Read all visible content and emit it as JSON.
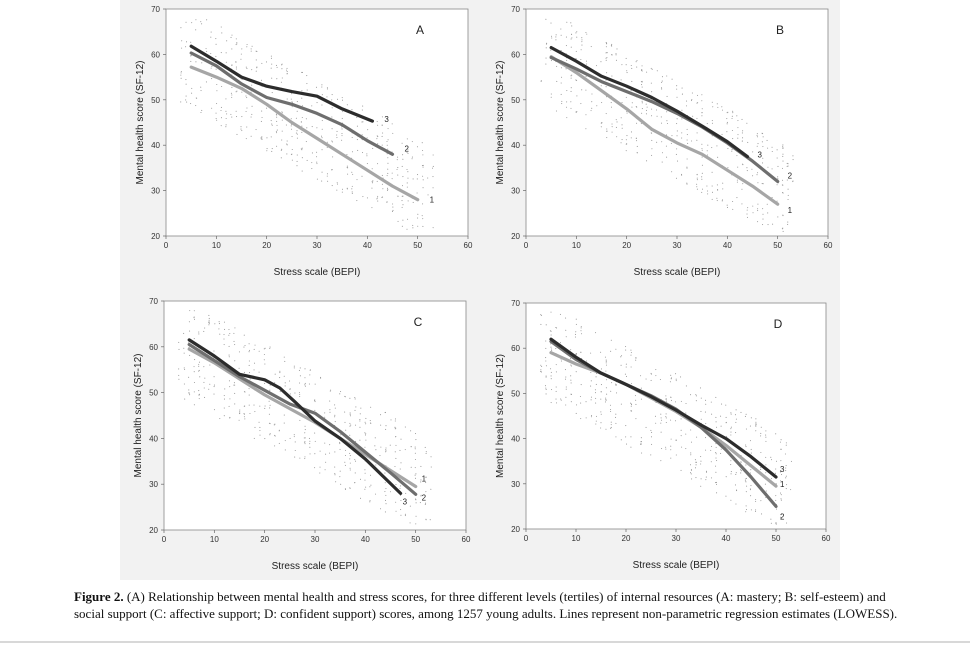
{
  "caption": {
    "label": "Figure 2.",
    "text": "(A) Relationship between mental health and stress scores, for three different levels (tertiles) of internal resources (A: mastery; B: self-esteem) and social support (C: affective support; D: confident support) scores, among 1257 young adults. Lines represent non-parametric regression estimates (LOWESS)."
  },
  "chart_data": [
    {
      "type": "line",
      "panel": "A",
      "xlabel": "Stress scale (BEPI)",
      "ylabel": "Mental health score (SF-12)",
      "xlim": [
        0,
        60
      ],
      "ylim": [
        20,
        70
      ],
      "xticks": [
        0,
        10,
        20,
        30,
        40,
        50,
        60
      ],
      "yticks": [
        20,
        30,
        40,
        50,
        60,
        70
      ],
      "series": [
        {
          "name": "1",
          "color": "#a6a6a6",
          "points": [
            [
              5,
              57.2
            ],
            [
              10,
              55
            ],
            [
              15,
              52.5
            ],
            [
              20,
              49
            ],
            [
              25,
              45
            ],
            [
              30,
              41.5
            ],
            [
              35,
              38
            ],
            [
              40,
              34.5
            ],
            [
              45,
              31
            ],
            [
              50,
              28
            ]
          ]
        },
        {
          "name": "2",
          "color": "#6e6e6e",
          "points": [
            [
              5,
              60.3
            ],
            [
              10,
              57.5
            ],
            [
              15,
              53.5
            ],
            [
              20,
              50.5
            ],
            [
              25,
              49
            ],
            [
              30,
              47
            ],
            [
              35,
              44.5
            ],
            [
              40,
              41
            ],
            [
              45,
              38
            ]
          ]
        },
        {
          "name": "3",
          "color": "#2c2c2c",
          "points": [
            [
              5,
              61.8
            ],
            [
              10,
              58.5
            ],
            [
              15,
              55
            ],
            [
              20,
              53
            ],
            [
              25,
              51.8
            ],
            [
              30,
              50.8
            ],
            [
              35,
              48
            ],
            [
              41,
              45.3
            ]
          ]
        }
      ]
    },
    {
      "type": "line",
      "panel": "B",
      "xlabel": "Stress scale (BEPI)",
      "ylabel": "Mental health score (SF-12)",
      "xlim": [
        0,
        60
      ],
      "ylim": [
        20,
        70
      ],
      "xticks": [
        0,
        10,
        20,
        30,
        40,
        50,
        60
      ],
      "yticks": [
        20,
        30,
        40,
        50,
        60,
        70
      ],
      "series": [
        {
          "name": "1",
          "color": "#a6a6a6",
          "points": [
            [
              5,
              59.5
            ],
            [
              10,
              56
            ],
            [
              15,
              52
            ],
            [
              20,
              48
            ],
            [
              25,
              43.5
            ],
            [
              30,
              40.5
            ],
            [
              35,
              38
            ],
            [
              40,
              34.5
            ],
            [
              45,
              31
            ],
            [
              50,
              27
            ]
          ]
        },
        {
          "name": "2",
          "color": "#6e6e6e",
          "points": [
            [
              5,
              59.3
            ],
            [
              10,
              56.8
            ],
            [
              15,
              54
            ],
            [
              20,
              51.8
            ],
            [
              25,
              49.6
            ],
            [
              30,
              47
            ],
            [
              35,
              44
            ],
            [
              40,
              40.5
            ],
            [
              45,
              36.5
            ],
            [
              50,
              32
            ]
          ]
        },
        {
          "name": "3",
          "color": "#2c2c2c",
          "points": [
            [
              5,
              61.5
            ],
            [
              10,
              58.5
            ],
            [
              15,
              55.2
            ],
            [
              20,
              53
            ],
            [
              25,
              50.5
            ],
            [
              30,
              47.5
            ],
            [
              35,
              44.2
            ],
            [
              40,
              40.8
            ],
            [
              44,
              37.5
            ]
          ]
        }
      ]
    },
    {
      "type": "line",
      "panel": "C",
      "xlabel": "Stress scale (BEPI)",
      "ylabel": "Mental health score (SF-12)",
      "xlim": [
        0,
        60
      ],
      "ylim": [
        20,
        70
      ],
      "xticks": [
        0,
        10,
        20,
        30,
        40,
        50,
        60
      ],
      "yticks": [
        20,
        30,
        40,
        50,
        60,
        70
      ],
      "series": [
        {
          "name": "1",
          "color": "#a6a6a6",
          "points": [
            [
              5,
              59.5
            ],
            [
              10,
              56.5
            ],
            [
              15,
              53
            ],
            [
              20,
              49.5
            ],
            [
              25,
              46.5
            ],
            [
              30,
              43.5
            ],
            [
              35,
              40
            ],
            [
              40,
              36.5
            ],
            [
              45,
              33
            ],
            [
              50,
              29.5
            ]
          ]
        },
        {
          "name": "2",
          "color": "#6e6e6e",
          "points": [
            [
              5,
              60.5
            ],
            [
              10,
              57
            ],
            [
              15,
              53.5
            ],
            [
              20,
              50.5
            ],
            [
              25,
              47.5
            ],
            [
              30,
              45.5
            ],
            [
              35,
              41.5
            ],
            [
              40,
              37
            ],
            [
              45,
              32.5
            ],
            [
              50,
              27.8
            ]
          ]
        },
        {
          "name": "3",
          "color": "#2c2c2c",
          "points": [
            [
              5,
              61.5
            ],
            [
              10,
              58
            ],
            [
              15,
              54
            ],
            [
              20,
              52.8
            ],
            [
              23,
              51
            ],
            [
              26,
              48
            ],
            [
              30,
              43.8
            ],
            [
              35,
              40
            ],
            [
              40,
              35.5
            ],
            [
              47,
              28
            ]
          ]
        }
      ]
    },
    {
      "type": "line",
      "panel": "D",
      "xlabel": "Stress scale (BEPI)",
      "ylabel": "Mental health score (SF-12)",
      "xlim": [
        0,
        60
      ],
      "ylim": [
        20,
        70
      ],
      "xticks": [
        0,
        10,
        20,
        30,
        40,
        50,
        60
      ],
      "yticks": [
        20,
        30,
        40,
        50,
        60,
        70
      ],
      "series": [
        {
          "name": "1",
          "color": "#a6a6a6",
          "points": [
            [
              5,
              59
            ],
            [
              10,
              56.5
            ],
            [
              15,
              54.5
            ],
            [
              20,
              52
            ],
            [
              25,
              49
            ],
            [
              30,
              46
            ],
            [
              35,
              42.5
            ],
            [
              40,
              38.5
            ],
            [
              45,
              34
            ],
            [
              50,
              29.5
            ]
          ]
        },
        {
          "name": "2",
          "color": "#6e6e6e",
          "points": [
            [
              5,
              61.5
            ],
            [
              10,
              57.5
            ],
            [
              15,
              54.5
            ],
            [
              20,
              52
            ],
            [
              25,
              49.5
            ],
            [
              30,
              46.5
            ],
            [
              35,
              42.5
            ],
            [
              40,
              37.5
            ],
            [
              45,
              31.5
            ],
            [
              50,
              25
            ]
          ]
        },
        {
          "name": "3",
          "color": "#2c2c2c",
          "points": [
            [
              5,
              62
            ],
            [
              10,
              58
            ],
            [
              15,
              54.5
            ],
            [
              20,
              52
            ],
            [
              25,
              49.3
            ],
            [
              30,
              46.3
            ],
            [
              35,
              43
            ],
            [
              40,
              40
            ],
            [
              45,
              36
            ],
            [
              50,
              31.5
            ]
          ]
        }
      ]
    }
  ]
}
